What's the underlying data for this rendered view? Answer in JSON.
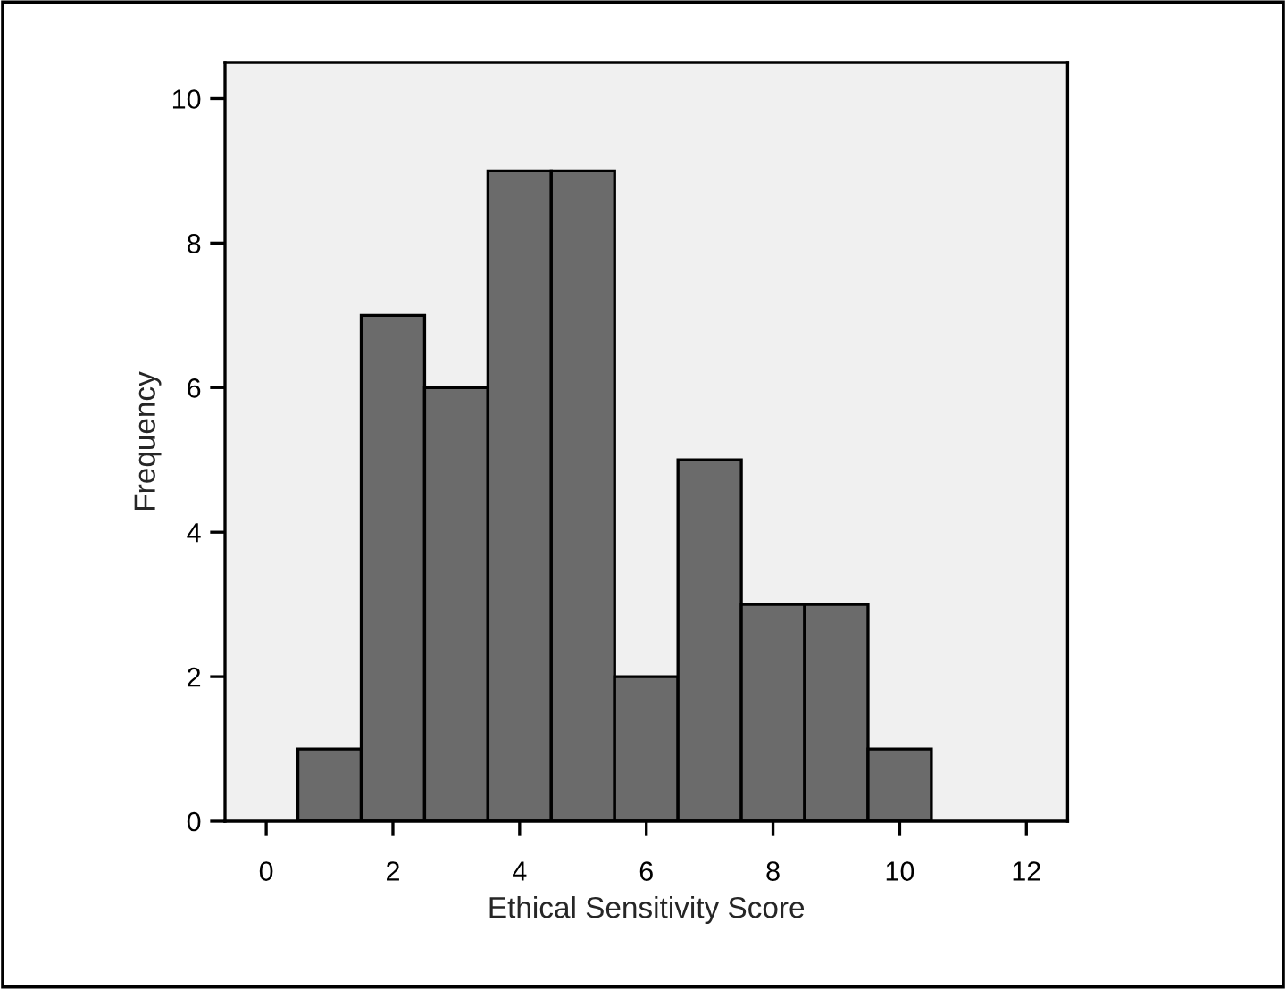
{
  "chart_data": {
    "type": "histogram",
    "xlabel": "Ethical Sensitivity Score",
    "ylabel": "Frequency",
    "bins": [
      0.5,
      1.5,
      2.5,
      3.5,
      4.5,
      5.5,
      6.5,
      7.5,
      8.5,
      9.5,
      10.5
    ],
    "values": [
      1,
      7,
      6,
      9,
      9,
      2,
      5,
      3,
      3,
      1
    ],
    "color": "#6b6b6b",
    "xlim": [
      -0.65,
      12.65
    ],
    "xticks": [
      0,
      2,
      4,
      6,
      8,
      10,
      12
    ],
    "ylim": [
      0,
      10.5
    ],
    "yticks": [
      0,
      2,
      4,
      6,
      8,
      10
    ],
    "grid": false
  }
}
